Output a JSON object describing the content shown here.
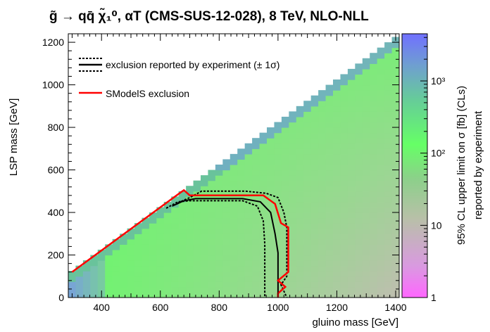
{
  "chart_data": {
    "type": "heatmap",
    "title": "g̃ → qq̄ χ̃₁⁰, αT (CMS-SUS-12-028), 8 TeV, NLO-NLL",
    "xlabel": "gluino mass [GeV]",
    "ylabel": "LSP mass [GeV]",
    "zlabel_line1": "95% CL upper limit on   σ [fb] (CLs)",
    "zlabel_line2": "reported by experiment",
    "xlim": [
      287,
      1412
    ],
    "ylim": [
      0,
      1240
    ],
    "zlim": [
      1,
      4500
    ],
    "zscale": "log",
    "x_ticks": [
      400,
      600,
      800,
      1000,
      1200,
      1400
    ],
    "y_ticks": [
      0,
      200,
      400,
      600,
      800,
      1000,
      1200
    ],
    "z_ticks": [
      {
        "value": 1,
        "label": "1"
      },
      {
        "value": 10,
        "label": "10"
      },
      {
        "value": 100,
        "label": "10²"
      },
      {
        "value": 1000,
        "label": "10³"
      }
    ],
    "grid": false,
    "legend_placement": "top-left",
    "legend": [
      {
        "label": "exclusion reported by experiment (± 1σ)",
        "style": "black-solid-with-dashed"
      },
      {
        "label": "SModelS  exclusion",
        "style": "red-solid"
      }
    ],
    "series": [
      {
        "name": "exclusion reported by experiment",
        "color": "#000000",
        "x": [
          640,
          680,
          720,
          880,
          940,
          975,
          990,
          1000,
          1000
        ],
        "y": [
          430,
          455,
          465,
          465,
          450,
          400,
          300,
          210,
          0
        ]
      },
      {
        "name": "exclusion reported by experiment -1σ",
        "color": "#000000",
        "x": [
          620,
          660,
          700,
          880,
          930,
          950,
          955,
          955
        ],
        "y": [
          420,
          450,
          455,
          455,
          430,
          360,
          250,
          0
        ]
      },
      {
        "name": "exclusion reported by experiment +1σ",
        "color": "#000000",
        "x": [
          660,
          700,
          740,
          890,
          960,
          1000,
          1020,
          1030,
          1030,
          1010,
          1030
        ],
        "y": [
          445,
          470,
          500,
          500,
          490,
          470,
          400,
          330,
          100,
          60,
          0
        ]
      },
      {
        "name": "SModelS exclusion",
        "color": "#ff0000",
        "x": [
          300,
          665,
          680,
          700,
          950,
          990,
          1010,
          1035,
          1035,
          1000,
          1025,
          1000,
          1000
        ],
        "y": [
          120,
          490,
          505,
          480,
          480,
          440,
          350,
          330,
          120,
          80,
          50,
          20,
          0
        ]
      }
    ]
  }
}
